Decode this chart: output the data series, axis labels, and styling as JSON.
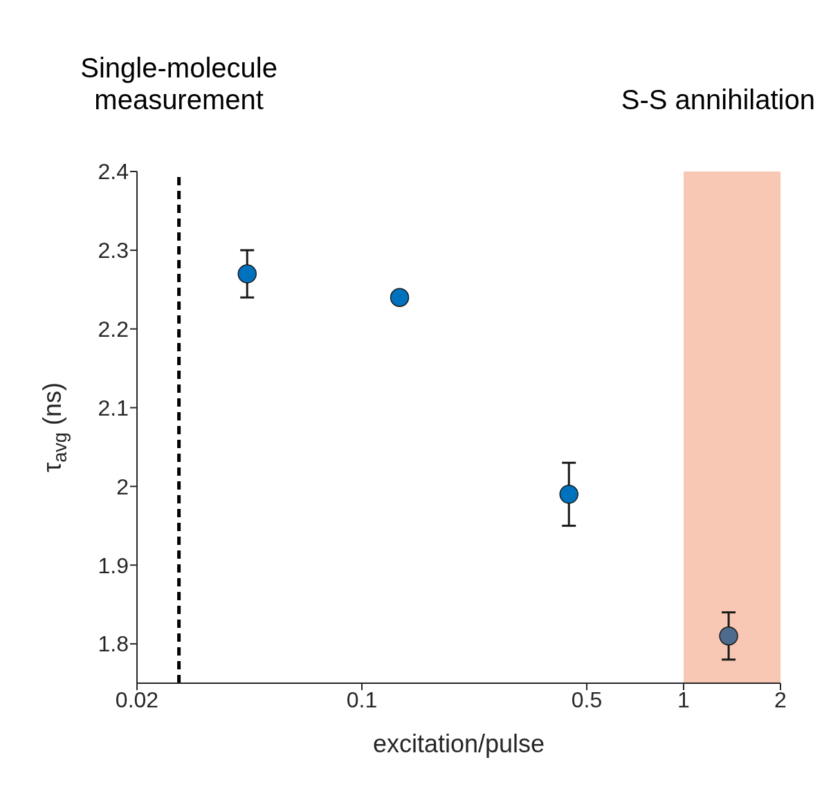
{
  "chart_data": {
    "type": "scatter",
    "xlabel": "excitation/pulse",
    "ylabel": "τ$_{avg}$ (ns)",
    "x": [
      0.044,
      0.131,
      0.44,
      1.38
    ],
    "values": [
      2.27,
      2.24,
      1.99,
      1.81
    ],
    "errors": [
      0.03,
      null,
      0.04,
      0.03
    ],
    "colors": [
      "#0072bd",
      "#0072bd",
      "#0072bd",
      "#4d6b8c"
    ],
    "marker": "circle",
    "log": "x",
    "xlim": [
      0.02,
      2
    ],
    "xticks": [
      0.02,
      0.1,
      0.5,
      1,
      2
    ],
    "ylim": [
      1.75,
      2.4
    ],
    "yticks": [
      1.8,
      1.9,
      2,
      2.1,
      2.2,
      2.3,
      2.4
    ],
    "grid": false,
    "legend": false,
    "ref_lines": [
      {
        "axis": "x",
        "value": 0.027,
        "label": "Single-molecule measurement",
        "color": "#000000",
        "line_style": "dashed"
      }
    ],
    "bands": [
      {
        "axis": "x",
        "from": 1,
        "to": 2,
        "label": "S-S annihilation",
        "color": "#f9c8b4"
      }
    ]
  }
}
